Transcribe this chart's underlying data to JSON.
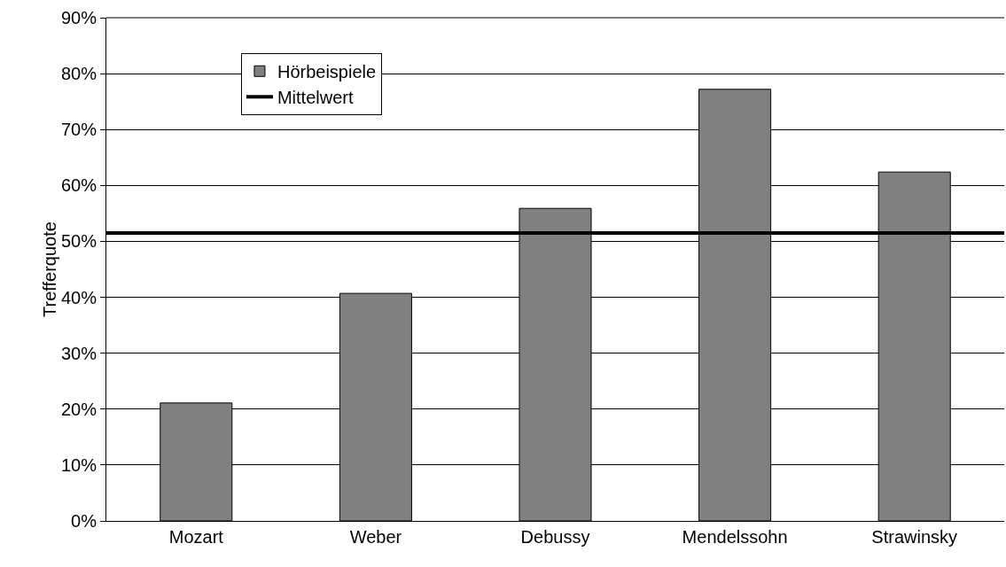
{
  "chart_data": {
    "type": "bar",
    "ylabel": "Trefferquote",
    "categories": [
      "Mozart",
      "Weber",
      "Debussy",
      "Mendelssohn",
      "Strawinsky"
    ],
    "series": [
      {
        "name": "Hörbeispiele",
        "color": "#808080",
        "values": [
          21.1,
          40.7,
          55.9,
          77.2,
          62.4
        ]
      }
    ],
    "ref_lines": [
      {
        "axis": "y",
        "value": 51.5,
        "label": "Mittelwert",
        "color": "#000000",
        "line_style": "solid"
      }
    ],
    "ylim": [
      0,
      90
    ],
    "yticks": [
      {
        "value": 0,
        "label": "0%"
      },
      {
        "value": 10,
        "label": "10%"
      },
      {
        "value": 20,
        "label": "20%"
      },
      {
        "value": 30,
        "label": "30%"
      },
      {
        "value": 40,
        "label": "40%"
      },
      {
        "value": 50,
        "label": "50%"
      },
      {
        "value": 60,
        "label": "60%"
      },
      {
        "value": 70,
        "label": "70%"
      },
      {
        "value": 80,
        "label": "80%"
      },
      {
        "value": 90,
        "label": "90%"
      }
    ],
    "grid": "y",
    "legend": "top left"
  }
}
